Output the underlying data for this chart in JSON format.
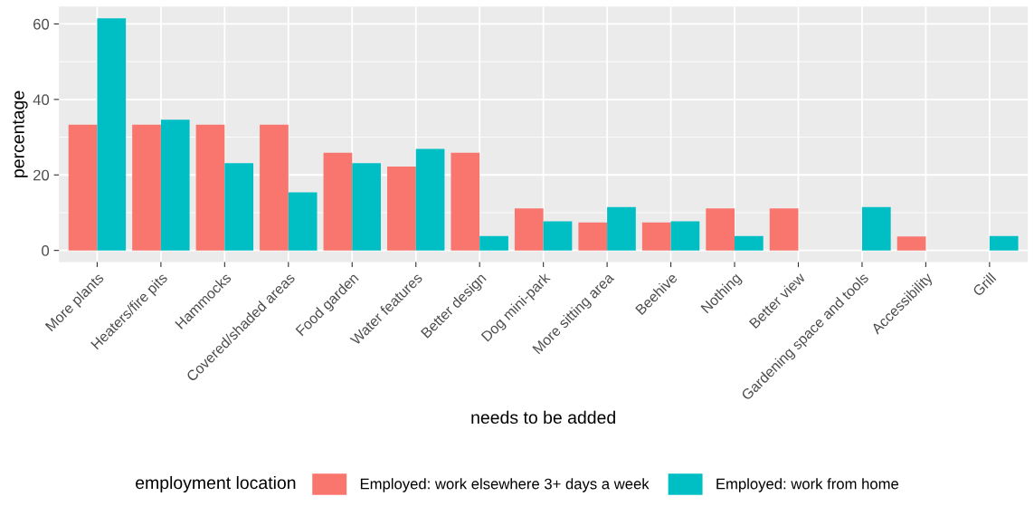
{
  "chart_data": {
    "type": "bar",
    "xlabel": "needs to be added",
    "ylabel": "percentage",
    "legend_title": "employment location",
    "categories": [
      "More plants",
      "Heaters/fire pits",
      "Hammocks",
      "Covered/shaded areas",
      "Food garden",
      "Water features",
      "Better design",
      "Dog mini-park",
      "More sitting area",
      "Beehive",
      "Nothing",
      "Better view",
      "Gardening space and tools",
      "Accessibility",
      "Grill"
    ],
    "series": [
      {
        "name": "Employed: work elsewhere 3+ days a week",
        "color": "#f8766d",
        "values": [
          33.3,
          33.3,
          33.3,
          33.3,
          25.9,
          22.2,
          25.9,
          11.1,
          7.4,
          7.4,
          11.1,
          11.1,
          0,
          3.7,
          0
        ]
      },
      {
        "name": "Employed: work from home",
        "color": "#00bfc4",
        "values": [
          61.5,
          34.6,
          23.1,
          15.4,
          23.1,
          26.9,
          3.8,
          7.7,
          11.5,
          7.7,
          3.8,
          0,
          11.5,
          0,
          3.8
        ]
      }
    ],
    "ylim": [
      -3.1,
      64.6
    ],
    "yticks": [
      0,
      20,
      40,
      60
    ],
    "grid": true,
    "legend": "bottom"
  }
}
